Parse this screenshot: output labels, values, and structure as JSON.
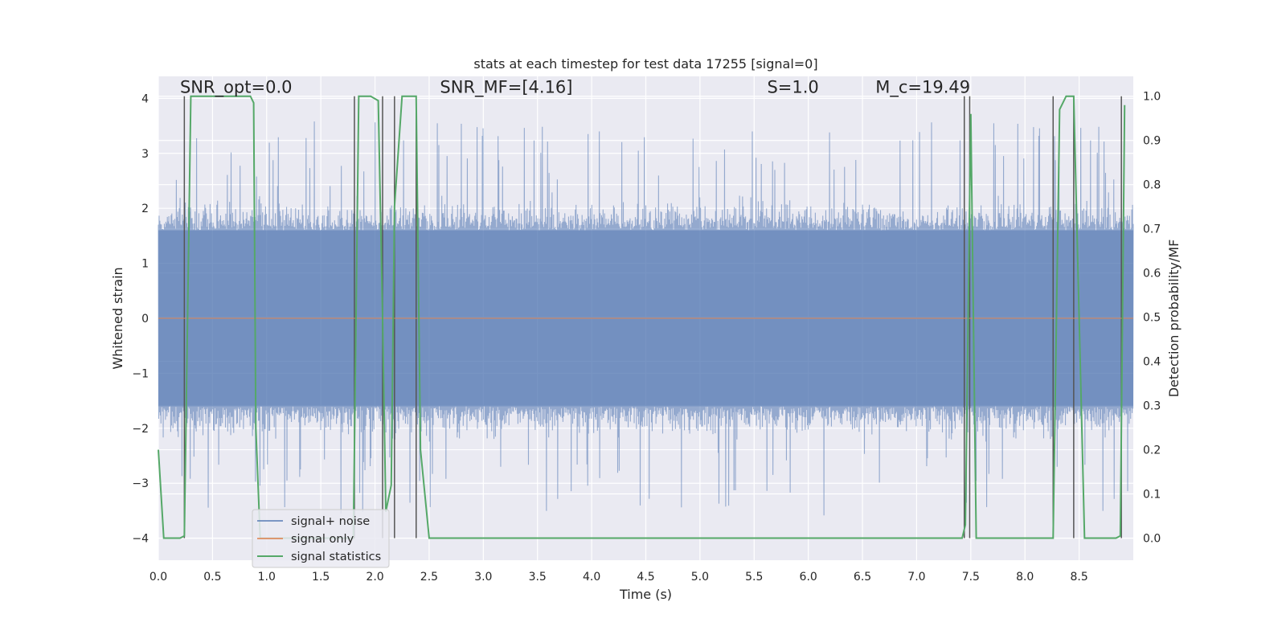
{
  "chart_data": {
    "type": "line",
    "title": "stats at each timestep for test data 17255 [signal=0]",
    "xlabel": "Time (s)",
    "ylabel": "Whitened strain",
    "y2label": "Detection probability/MF",
    "xlim": [
      0.0,
      9.0
    ],
    "ylim": [
      -4.4,
      4.4
    ],
    "y2lim": [
      -0.05,
      1.045
    ],
    "xticks": [
      "0.0",
      "0.5",
      "1.0",
      "1.5",
      "2.0",
      "2.5",
      "3.0",
      "3.5",
      "4.0",
      "4.5",
      "5.0",
      "5.5",
      "6.0",
      "6.5",
      "7.0",
      "7.5",
      "8.0",
      "8.5"
    ],
    "yticks": [
      "−4",
      "−3",
      "−2",
      "−1",
      "0",
      "1",
      "2",
      "3",
      "4"
    ],
    "y2ticks": [
      "0.0",
      "0.1",
      "0.2",
      "0.3",
      "0.4",
      "0.5",
      "0.6",
      "0.7",
      "0.8",
      "0.9",
      "1.0"
    ],
    "grid": true,
    "annotations": [
      {
        "text": "SNR_opt=0.0",
        "x": 0.2,
        "y": 4.1
      },
      {
        "text": "SNR_MF=[4.16]",
        "x": 2.6,
        "y": 4.1
      },
      {
        "text": "S=1.0",
        "x": 5.62,
        "y": 4.1
      },
      {
        "text": "M_c=19.49",
        "x": 6.62,
        "y": 4.1
      }
    ],
    "legend": {
      "placement": "lower-left",
      "entries": [
        "signal+ noise",
        "signal only",
        "signal statistics"
      ]
    },
    "series": [
      {
        "name": "signal+ noise",
        "axis": "left",
        "kind": "noise-band",
        "color": "#4c72b0",
        "opacity": 0.55,
        "core_amplitude": 1.6,
        "typical_peak": 2.4,
        "peak_range": [
          -4.0,
          3.8
        ]
      },
      {
        "name": "signal only",
        "axis": "left",
        "color": "#dd8452",
        "x": [
          0.0,
          9.0
        ],
        "y": [
          0.0,
          0.0
        ]
      },
      {
        "name": "signal statistics",
        "axis": "right",
        "color": "#55a868",
        "x": [
          0.0,
          0.05,
          0.2,
          0.24,
          0.3,
          0.85,
          0.88,
          0.9,
          0.94,
          1.8,
          1.85,
          1.96,
          2.03,
          2.07,
          2.1,
          2.15,
          2.18,
          2.25,
          2.38,
          2.42,
          2.5,
          7.42,
          7.45,
          7.5,
          7.55,
          8.26,
          8.32,
          8.38,
          8.45,
          8.55,
          8.84,
          8.88,
          8.92
        ],
        "y": [
          0.2,
          0.0,
          0.0,
          0.005,
          1.0,
          1.0,
          0.985,
          0.25,
          0.0,
          0.0,
          1.0,
          1.0,
          0.99,
          0.5,
          0.06,
          0.12,
          0.75,
          1.0,
          1.0,
          0.2,
          0.0,
          0.0,
          0.03,
          0.96,
          0.0,
          0.0,
          0.97,
          1.0,
          1.0,
          0.0,
          0.0,
          0.005,
          0.98
        ]
      }
    ],
    "vertical_markers": [
      0.24,
      1.81,
      2.07,
      2.18,
      2.38,
      7.44,
      7.49,
      8.26,
      8.45,
      8.89
    ]
  }
}
